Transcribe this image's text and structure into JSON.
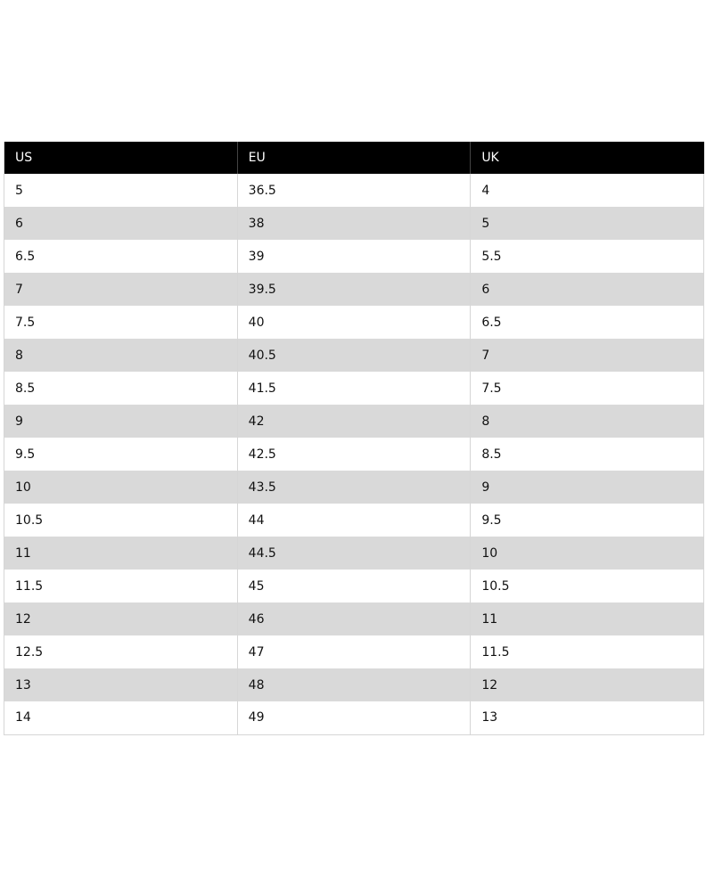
{
  "table": {
    "header": [
      "US",
      "EU",
      "UK"
    ],
    "rows": [
      [
        "5",
        "36.5",
        "4"
      ],
      [
        "6",
        "38",
        "5"
      ],
      [
        "6.5",
        "39",
        "5.5"
      ],
      [
        "7",
        "39.5",
        "6"
      ],
      [
        "7.5",
        "40",
        "6.5"
      ],
      [
        "8",
        "40.5",
        "7"
      ],
      [
        "8.5",
        "41.5",
        "7.5"
      ],
      [
        "9",
        "42",
        "8"
      ],
      [
        "9.5",
        "42.5",
        "8.5"
      ],
      [
        "10",
        "43.5",
        "9"
      ],
      [
        "10.5",
        "44",
        "9.5"
      ],
      [
        "11",
        "44.5",
        "10"
      ],
      [
        "11.5",
        "45",
        "10.5"
      ],
      [
        "12",
        "46",
        "11"
      ],
      [
        "12.5",
        "47",
        "11.5"
      ],
      [
        "13",
        "48",
        "12"
      ],
      [
        "14",
        "49",
        "13"
      ]
    ]
  }
}
